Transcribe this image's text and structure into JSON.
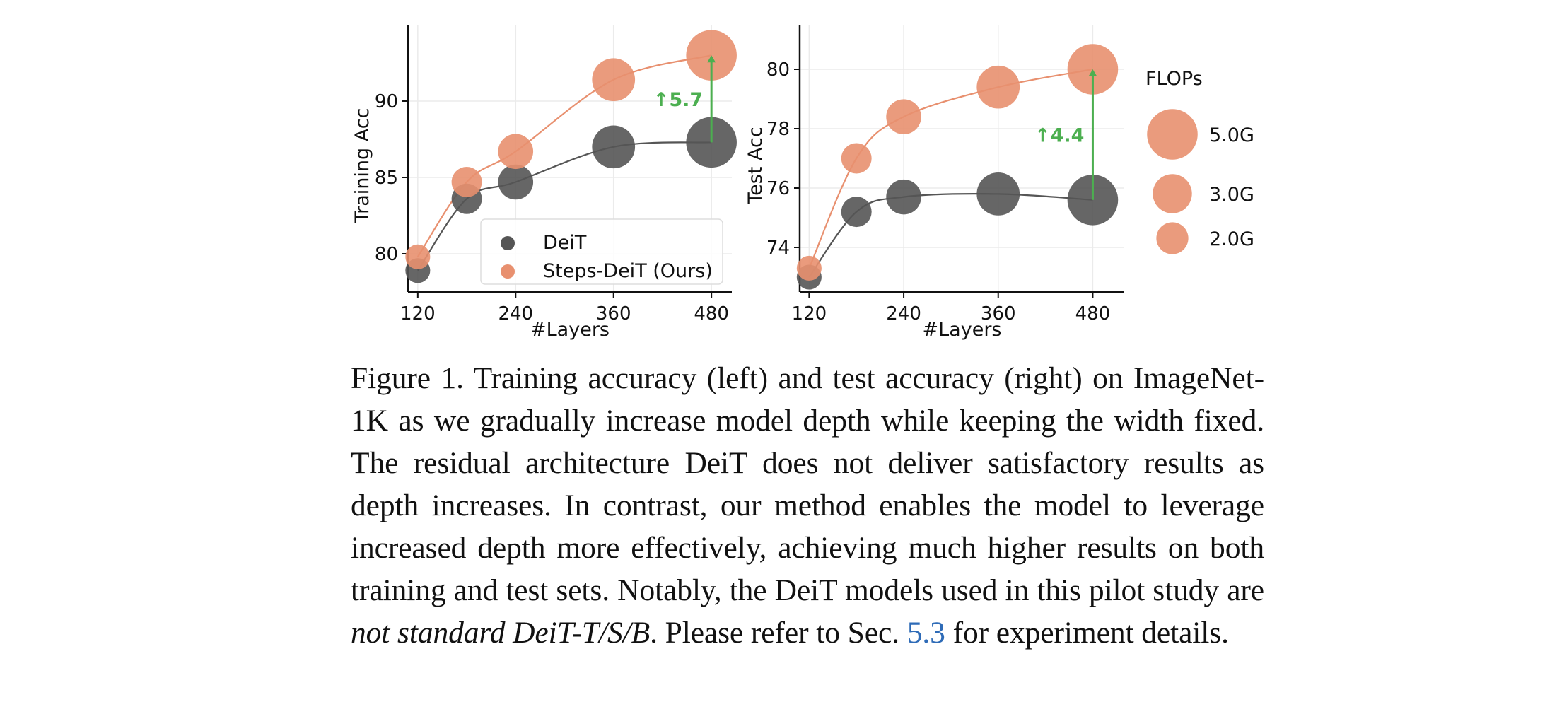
{
  "chart_data": [
    {
      "type": "scatter",
      "xlabel": "#Layers",
      "ylabel": "Training Acc",
      "xticks": [
        120,
        240,
        360,
        480
      ],
      "yticks": [
        80,
        85,
        90
      ],
      "xlim": [
        108,
        505
      ],
      "ylim": [
        77.5,
        95.0
      ],
      "grid": true,
      "legend_position": "lower-right",
      "series": [
        {
          "name": "DeiT",
          "color": "#555555",
          "x": [
            120,
            180,
            240,
            360,
            480
          ],
          "y": [
            78.9,
            83.6,
            84.7,
            87.0,
            87.3
          ],
          "flops": [
            1.2,
            1.8,
            2.4,
            3.6,
            5.0
          ]
        },
        {
          "name": "Steps-DeiT (Ours)",
          "color": "#e8906f",
          "x": [
            120,
            180,
            240,
            360,
            480
          ],
          "y": [
            79.8,
            84.7,
            86.7,
            91.4,
            93.0
          ],
          "flops": [
            1.2,
            1.8,
            2.4,
            3.6,
            5.0
          ]
        }
      ],
      "annotation": {
        "text": "↑5.7",
        "x": 480,
        "y_from": 87.3,
        "y_to": 93.0
      }
    },
    {
      "type": "scatter",
      "xlabel": "#Layers",
      "ylabel": "Test Acc",
      "xticks": [
        120,
        240,
        360,
        480
      ],
      "yticks": [
        74,
        76,
        78,
        80
      ],
      "xlim": [
        108,
        520
      ],
      "ylim": [
        72.5,
        81.5
      ],
      "grid": true,
      "series": [
        {
          "name": "DeiT",
          "color": "#555555",
          "x": [
            120,
            180,
            240,
            360,
            480
          ],
          "y": [
            73.0,
            75.2,
            75.7,
            75.8,
            75.6
          ],
          "flops": [
            1.2,
            1.8,
            2.4,
            3.6,
            5.0
          ]
        },
        {
          "name": "Steps-DeiT (Ours)",
          "color": "#e8906f",
          "x": [
            120,
            180,
            240,
            360,
            480
          ],
          "y": [
            73.3,
            77.0,
            78.4,
            79.4,
            80.0
          ],
          "flops": [
            1.2,
            1.8,
            2.4,
            3.6,
            5.0
          ]
        }
      ],
      "annotation": {
        "text": "↑4.4",
        "x": 480,
        "y_from": 75.6,
        "y_to": 80.0
      }
    }
  ],
  "size_legend": {
    "title": "FLOPs",
    "entries": [
      {
        "label": "5.0G",
        "flops": 5.0
      },
      {
        "label": "3.0G",
        "flops": 3.0
      },
      {
        "label": "2.0G",
        "flops": 2.0
      }
    ]
  },
  "caption": {
    "part1": "Figure 1.  Training accuracy (left) and test accuracy (right) on ImageNet-1K as we gradually increase model depth while keeping the width fixed.  The residual architecture DeiT does not deliver satisfactory results as depth increases.  In contrast, our method enables the model to leverage increased depth more effectively, achieving much higher results on both training and test sets. Notably, the DeiT models used in this pilot study are ",
    "italic": "not standard DeiT-T/S/B",
    "part2": ". Please refer to Sec. ",
    "ref": "5.3",
    "part3": " for experiment details."
  }
}
